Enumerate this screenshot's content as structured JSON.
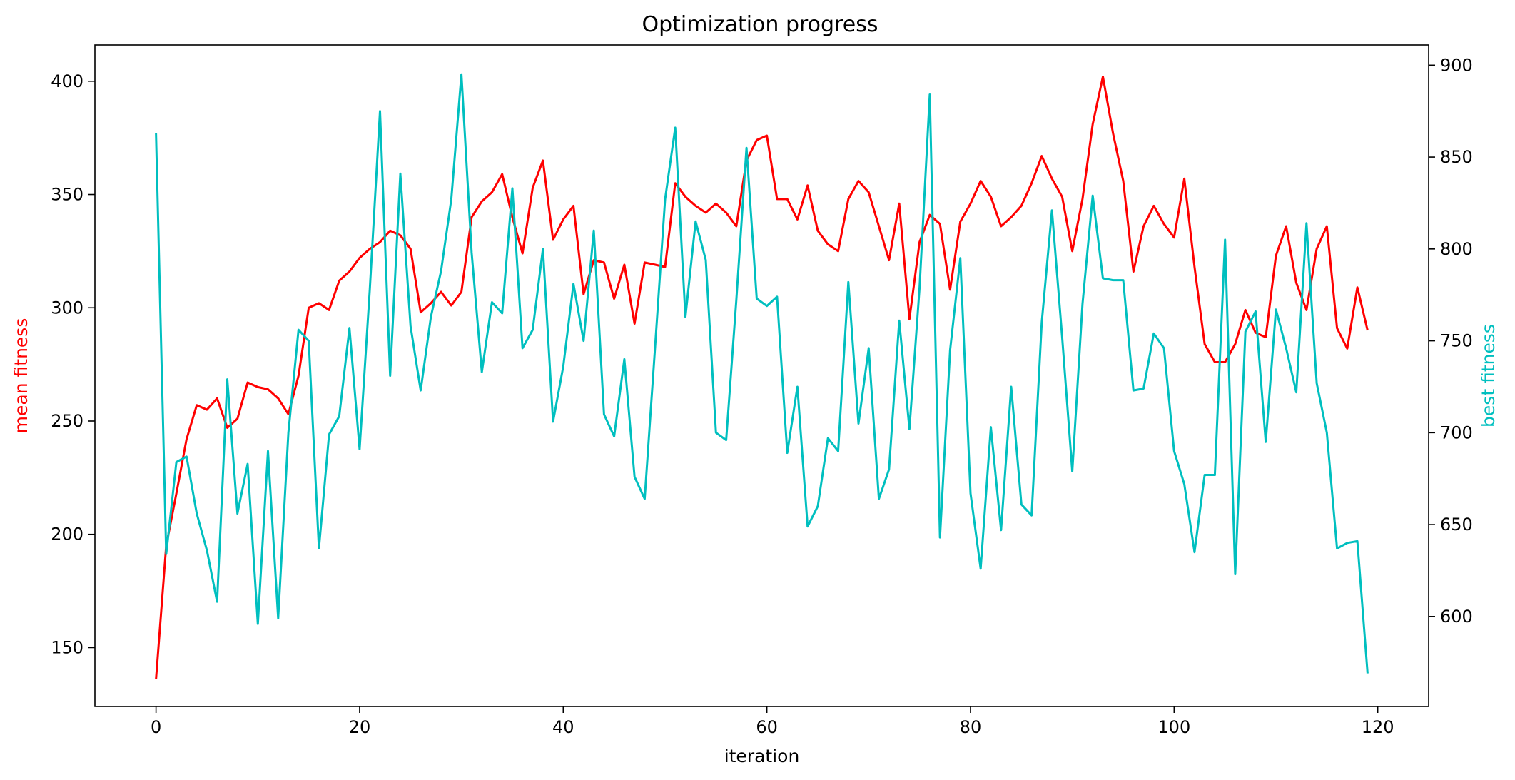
{
  "chart_data": {
    "type": "line",
    "title": "Optimization progress",
    "xlabel": "iteration",
    "xlim": [
      -6,
      125
    ],
    "xticks": [
      0,
      20,
      40,
      60,
      80,
      100,
      120
    ],
    "grid": false,
    "y_left": {
      "label": "mean fitness",
      "color": "#ff0000",
      "lim": [
        124,
        416
      ],
      "ticks": [
        150,
        200,
        250,
        300,
        350,
        400
      ]
    },
    "y_right": {
      "label": "best fitness",
      "color": "#00bfbf",
      "lim": [
        551,
        911
      ],
      "ticks": [
        600,
        650,
        700,
        750,
        800,
        850,
        900
      ]
    },
    "x": [
      0,
      1,
      2,
      3,
      4,
      5,
      6,
      7,
      8,
      9,
      10,
      11,
      12,
      13,
      14,
      15,
      16,
      17,
      18,
      19,
      20,
      21,
      22,
      23,
      24,
      25,
      26,
      27,
      28,
      29,
      30,
      31,
      32,
      33,
      34,
      35,
      36,
      37,
      38,
      39,
      40,
      41,
      42,
      43,
      44,
      45,
      46,
      47,
      48,
      49,
      50,
      51,
      52,
      53,
      54,
      55,
      56,
      57,
      58,
      59,
      60,
      61,
      62,
      63,
      64,
      65,
      66,
      67,
      68,
      69,
      70,
      71,
      72,
      73,
      74,
      75,
      76,
      77,
      78,
      79,
      80,
      81,
      82,
      83,
      84,
      85,
      86,
      87,
      88,
      89,
      90,
      91,
      92,
      93,
      94,
      95,
      96,
      97,
      98,
      99,
      100,
      101,
      102,
      103,
      104,
      105,
      106,
      107,
      108,
      109,
      110,
      111,
      112,
      113,
      114,
      115,
      116,
      117,
      118,
      119
    ],
    "series": [
      {
        "name": "mean fitness",
        "axis": "left",
        "color": "#ff0000",
        "values": [
          136,
          195,
          218,
          242,
          257,
          255,
          260,
          247,
          251,
          267,
          265,
          264,
          260,
          253,
          270,
          300,
          302,
          299,
          312,
          316,
          322,
          326,
          329,
          334,
          332,
          326,
          298,
          302,
          307,
          301,
          307,
          340,
          347,
          351,
          359,
          340,
          324,
          353,
          365,
          330,
          339,
          345,
          306,
          321,
          320,
          304,
          319,
          293,
          320,
          319,
          318,
          355,
          349,
          345,
          342,
          346,
          342,
          336,
          365,
          374,
          376,
          348,
          348,
          339,
          354,
          334,
          328,
          325,
          348,
          356,
          351,
          336,
          321,
          346,
          295,
          329,
          341,
          337,
          308,
          338,
          346,
          356,
          349,
          336,
          340,
          345,
          355,
          367,
          357,
          349,
          325,
          348,
          381,
          402,
          377,
          356,
          316,
          336,
          345,
          337,
          331,
          357,
          318,
          284,
          276,
          276,
          284,
          299,
          289,
          287,
          323,
          336,
          311,
          299,
          326,
          336,
          291,
          282,
          309,
          290
        ]
      },
      {
        "name": "best fitness",
        "axis": "right",
        "color": "#00bfbf",
        "values": [
          863,
          634,
          684,
          687,
          656,
          636,
          608,
          729,
          656,
          683,
          596,
          690,
          599,
          700,
          756,
          750,
          637,
          699,
          709,
          757,
          691,
          778,
          875,
          731,
          841,
          758,
          723,
          763,
          788,
          827,
          895,
          798,
          733,
          771,
          765,
          833,
          746,
          756,
          800,
          706,
          736,
          781,
          750,
          810,
          710,
          698,
          740,
          676,
          664,
          745,
          827,
          866,
          763,
          815,
          794,
          700,
          696,
          772,
          855,
          773,
          769,
          774,
          689,
          725,
          649,
          660,
          697,
          690,
          782,
          705,
          746,
          664,
          680,
          761,
          702,
          779,
          884,
          643,
          745,
          795,
          667,
          626,
          703,
          647,
          725,
          661,
          655,
          760,
          821,
          752,
          679,
          770,
          829,
          784,
          783,
          783,
          723,
          724,
          754,
          746,
          690,
          672,
          635,
          677,
          677,
          805,
          623,
          755,
          766,
          695,
          767,
          746,
          722,
          814,
          727,
          700,
          637,
          640,
          641,
          569
        ]
      }
    ]
  }
}
